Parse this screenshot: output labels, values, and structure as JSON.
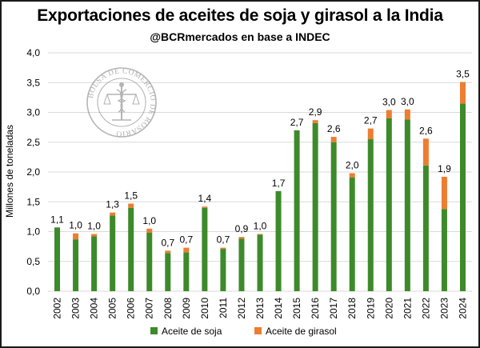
{
  "chart_data": {
    "type": "bar",
    "stacked": true,
    "title": "Exportaciones de aceites de soja y girasol a la India",
    "subtitle": "@BCRmercados en base a INDEC",
    "xlabel": "",
    "ylabel": "Millones de toneladas",
    "ylim": [
      0,
      4.0
    ],
    "yticks": [
      "0,0",
      "0,5",
      "1,0",
      "1,5",
      "2,0",
      "2,5",
      "3,0",
      "3,5",
      "4,0"
    ],
    "grid": true,
    "legend_position": "bottom",
    "categories": [
      "2002",
      "2003",
      "2004",
      "2005",
      "2006",
      "2007",
      "2008",
      "2009",
      "2010",
      "2011",
      "2012",
      "2013",
      "2014",
      "2015",
      "2016",
      "2017",
      "2018",
      "2019",
      "2020",
      "2021",
      "2022",
      "2023",
      "2024"
    ],
    "series": [
      {
        "name": "Aceite de soja",
        "color": "#3d8a2a",
        "values": [
          1.07,
          0.87,
          0.92,
          1.27,
          1.4,
          0.98,
          0.64,
          0.65,
          1.4,
          0.71,
          0.88,
          0.95,
          1.68,
          2.7,
          2.82,
          2.5,
          1.91,
          2.55,
          2.9,
          2.88,
          2.11,
          1.38,
          3.15
        ]
      },
      {
        "name": "Aceite de girasol",
        "color": "#ed7d31",
        "values": [
          0.0,
          0.1,
          0.04,
          0.05,
          0.07,
          0.07,
          0.04,
          0.08,
          0.02,
          0.02,
          0.03,
          0.01,
          0.0,
          0.0,
          0.05,
          0.09,
          0.07,
          0.18,
          0.14,
          0.17,
          0.45,
          0.54,
          0.36
        ]
      }
    ],
    "data_labels": [
      "1,1",
      "1,0",
      "1,0",
      "1,3",
      "1,5",
      "1,0",
      "0,7",
      "0,7",
      "1,4",
      "0,7",
      "0,9",
      "1,0",
      "1,7",
      "2,7",
      "2,9",
      "2,6",
      "2,0",
      "2,7",
      "3,0",
      "3,0",
      "2,6",
      "1,9",
      "3,5"
    ]
  },
  "watermark": {
    "text_outer": "BOLSA DE COMERCIO DE ROSARIO",
    "color": "#8a8a8a"
  }
}
